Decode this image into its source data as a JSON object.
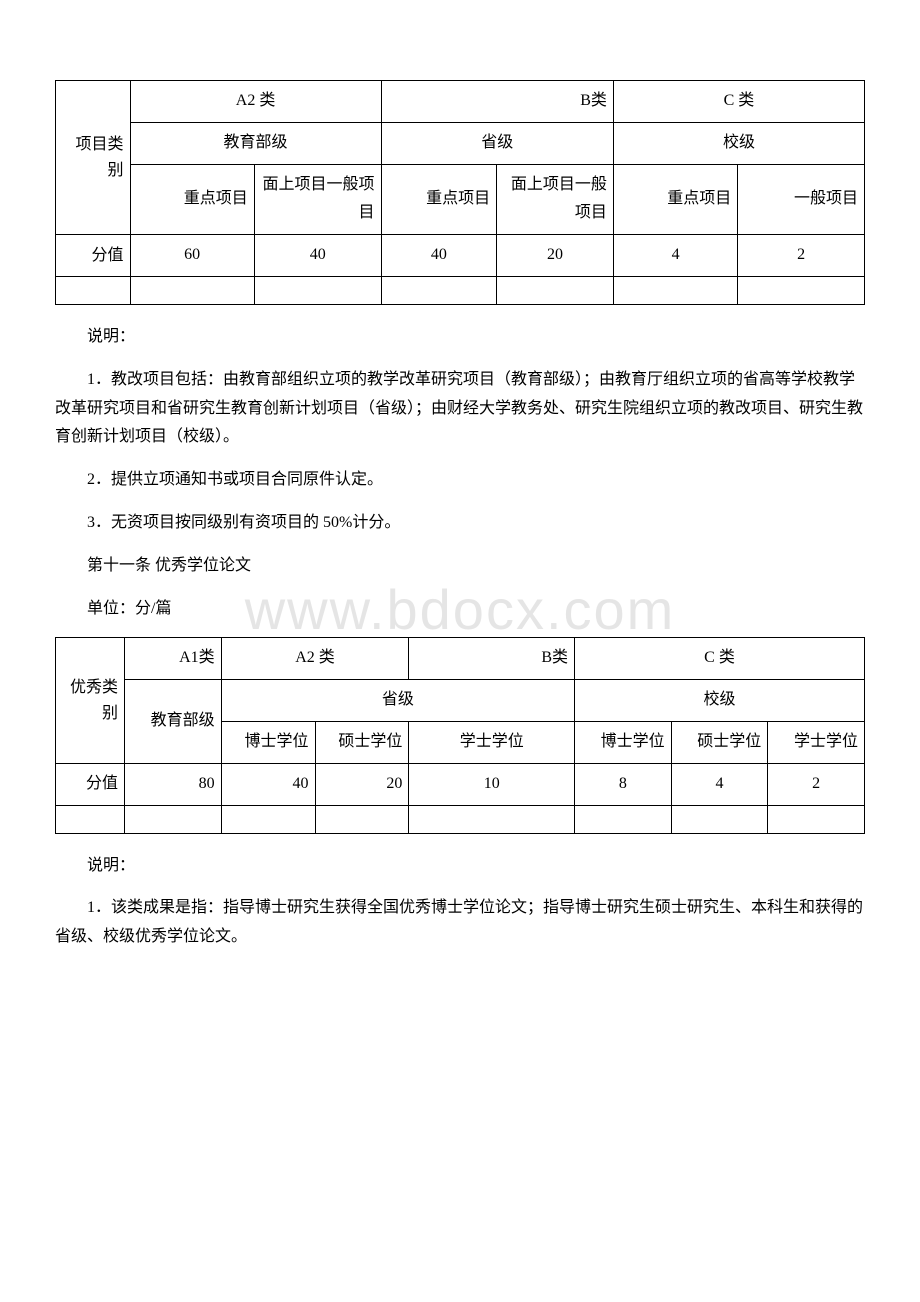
{
  "watermark": "www.bdocx.com",
  "table1": {
    "rowLabels": {
      "category": "项目类别",
      "score": "分值"
    },
    "header1": {
      "a2": "A2 类",
      "b": "B类",
      "c": "C 类"
    },
    "header2": {
      "edu": "教育部级",
      "prov": "省级",
      "school": "校级"
    },
    "header3": {
      "key1": "重点项目",
      "gen1": "面上项目一般项目",
      "key2": "重点项目",
      "gen2": "面上项目一般项目",
      "key3": "重点项目",
      "gen3": "一般项目"
    },
    "values": [
      "60",
      "40",
      "40",
      "20",
      "4",
      "2"
    ]
  },
  "paragraphs1": {
    "note": "说明：",
    "p1": "1．教改项目包括：由教育部组织立项的教学改革研究项目（教育部级）；由教育厅组织立项的省高等学校教学改革研究项目和省研究生教育创新计划项目（省级）；由财经大学教务处、研究生院组织立项的教改项目、研究生教育创新计划项目（校级）。",
    "p2": "2．提供立项通知书或项目合同原件认定。",
    "p3": "3．无资项目按同级别有资项目的 50%计分。",
    "p4": "第十一条 优秀学位论文",
    "p5": "单位：分/篇"
  },
  "table2": {
    "rowLabels": {
      "category": "优秀类别",
      "score": "分值"
    },
    "header1": {
      "a1": "A1类",
      "a2": "A2 类",
      "b": "B类",
      "c": "C 类"
    },
    "header2": {
      "edu": "教育部级",
      "prov": "省级",
      "school": "校级"
    },
    "header3": {
      "d1": "博士学位",
      "d2": "博士学位",
      "d3": "硕士学位",
      "d4": "学士学位",
      "d5": "博士学位",
      "d6": "硕士学位",
      "d7": "学士学位"
    },
    "values": [
      "80",
      "40",
      "20",
      "10",
      "8",
      "4",
      "2"
    ]
  },
  "paragraphs2": {
    "note": "说明：",
    "p1": "1．该类成果是指：指导博士研究生获得全国优秀博士学位论文；指导博士研究生硕士研究生、本科生和获得的省级、校级优秀学位论文。"
  }
}
